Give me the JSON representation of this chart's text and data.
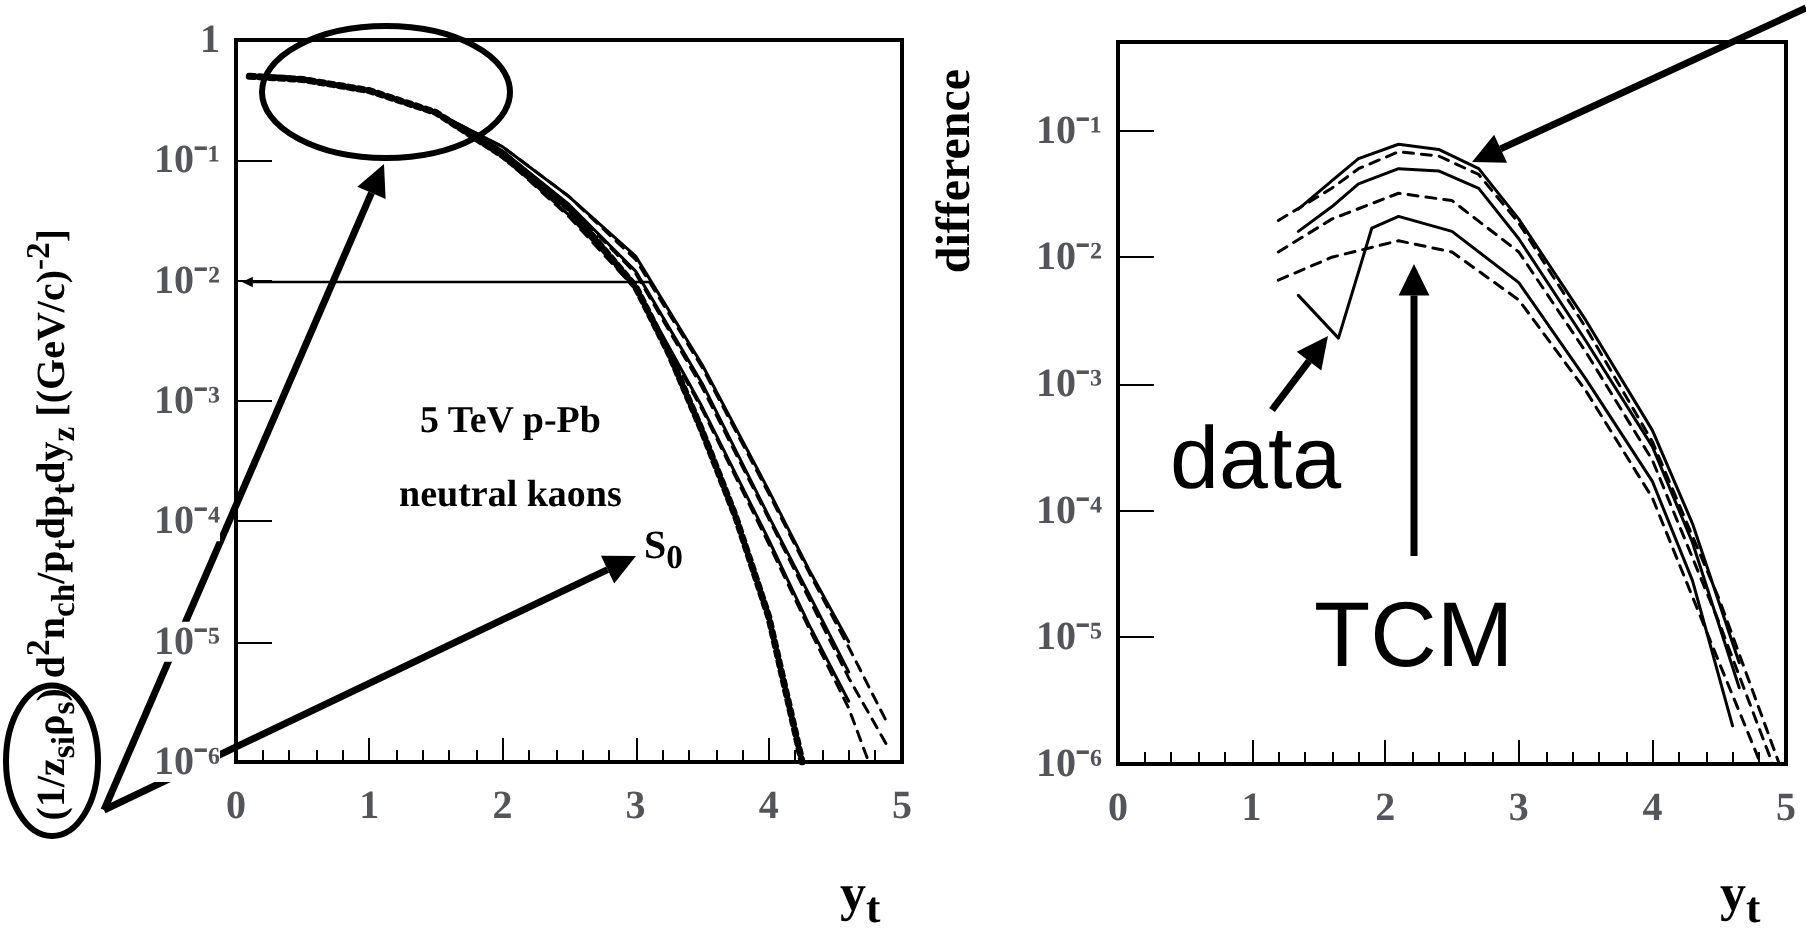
{
  "chart_data": [
    {
      "type": "line",
      "xlabel": "y$_{t}$",
      "ylabel": "(1/z$_{si}$ρ$_{s}$) d$^{2}$n$_{ch}$/p$_{t}$dp$_{t}$dy$_{z}$  [(GeV/c)$^{-2}$]",
      "log": "y",
      "grid": false,
      "marker": "none",
      "xlim": [
        0,
        5
      ],
      "xticks": [
        0,
        1,
        2,
        3,
        4,
        5
      ],
      "ylim": [
        1e-06,
        1
      ],
      "yticks": [
        1,
        {
          "value": 0.1,
          "label": "10⁻¹"
        },
        {
          "value": 0.01,
          "label": "10⁻²"
        },
        {
          "value": 0.001,
          "label": "10⁻³"
        },
        {
          "value": 0.0001,
          "label": "10⁻⁴"
        },
        {
          "value": 1e-05,
          "label": "10⁻⁵"
        },
        {
          "value": 1e-06,
          "label": "10⁻⁶"
        }
      ],
      "annotations": [
        "5 TeV p-Pb",
        "neutral kaons",
        "S$_{0}$"
      ],
      "series": [
        {
          "color": "#000000",
          "line_style": "dotted",
          "x": [
            0.1,
            0.5,
            1,
            1.5,
            2,
            2.5,
            3,
            3.25,
            3.5,
            3.75,
            4,
            4.25
          ],
          "values": [
            0.5,
            0.47,
            0.38,
            0.25,
            0.11,
            0.04,
            0.0089,
            0.0025,
            0.00056,
            0.00011,
            1.6e-05,
            1e-06
          ]
        },
        {
          "color": "#000000",
          "line_style": "solid",
          "x": [
            0.3,
            0.5,
            1,
            1.5,
            2,
            2.5,
            3,
            3.5,
            4,
            4.3,
            4.6
          ],
          "values": [
            0.5,
            0.48,
            0.38,
            0.25,
            0.13,
            0.05,
            0.016,
            0.002,
            0.00018,
            4e-05,
            1e-05
          ]
        },
        {
          "color": "#000000",
          "line_style": "solid",
          "x": [
            0.3,
            0.5,
            1,
            1.5,
            2,
            2.5,
            3,
            3.5,
            4,
            4.3,
            4.6
          ],
          "values": [
            0.5,
            0.48,
            0.38,
            0.25,
            0.12,
            0.043,
            0.012,
            0.0014,
            0.00011,
            2.5e-05,
            5.6e-06
          ]
        },
        {
          "color": "#000000",
          "line_style": "solid",
          "x": [
            0.3,
            0.5,
            1,
            1.5,
            2,
            2.5,
            3,
            3.5,
            4,
            4.3,
            4.6
          ],
          "values": [
            0.5,
            0.48,
            0.38,
            0.25,
            0.11,
            0.035,
            0.0089,
            0.00089,
            7e-05,
            1.4e-05,
            3.2e-06
          ]
        },
        {
          "color": "#000000",
          "line_style": "dashed",
          "x": [
            0.1,
            0.5,
            1,
            1.5,
            2,
            2.5,
            3,
            3.5,
            4,
            4.3,
            4.6,
            4.9
          ],
          "values": [
            0.5,
            0.48,
            0.38,
            0.25,
            0.13,
            0.05,
            0.015,
            0.0019,
            0.00017,
            3.8e-05,
            9e-06,
            2e-06
          ]
        },
        {
          "color": "#000000",
          "line_style": "dashed",
          "x": [
            0.1,
            0.5,
            1,
            1.5,
            2,
            2.5,
            3,
            3.5,
            4,
            4.3,
            4.6,
            4.9
          ],
          "values": [
            0.5,
            0.48,
            0.38,
            0.25,
            0.12,
            0.042,
            0.0115,
            0.0013,
            0.000105,
            2.3e-05,
            5e-06,
            1.3e-06
          ]
        },
        {
          "color": "#000000",
          "line_style": "dashed",
          "x": [
            0.1,
            0.5,
            1,
            1.5,
            2,
            2.5,
            3,
            3.5,
            4,
            4.3,
            4.6,
            4.75
          ],
          "values": [
            0.5,
            0.47,
            0.38,
            0.25,
            0.108,
            0.034,
            0.0085,
            0.00085,
            6.5e-05,
            1.3e-05,
            2.8e-06,
            1e-06
          ]
        }
      ]
    },
    {
      "type": "line",
      "xlabel": "y$_{t}$",
      "ylabel": "difference",
      "log": "y",
      "grid": false,
      "marker": "none",
      "xlim": [
        0,
        5
      ],
      "xticks": [
        0,
        1,
        2,
        3,
        4,
        5
      ],
      "ylim": [
        1e-06,
        0.5
      ],
      "yticks": [
        {
          "value": 0.1,
          "label": "10⁻¹"
        },
        {
          "value": 0.01,
          "label": "10⁻²"
        },
        {
          "value": 0.001,
          "label": "10⁻³"
        },
        {
          "value": 0.0001,
          "label": "10⁻⁴"
        },
        {
          "value": 1e-05,
          "label": "10⁻⁵"
        },
        {
          "value": 1e-06,
          "label": "10⁻⁶"
        }
      ],
      "annotations": [
        "data",
        "TCM"
      ],
      "series": [
        {
          "color": "#000000",
          "line_style": "solid",
          "x": [
            1.35,
            1.6,
            1.8,
            2.1,
            2.4,
            2.7,
            3,
            3.5,
            4,
            4.3,
            4.65
          ],
          "values": [
            0.024,
            0.04,
            0.06,
            0.078,
            0.071,
            0.05,
            0.02,
            0.0032,
            0.00043,
            7.9e-05,
            6.3e-06
          ]
        },
        {
          "color": "#000000",
          "line_style": "solid",
          "x": [
            1.35,
            1.6,
            1.8,
            2.1,
            2.4,
            2.7,
            3,
            3.5,
            4,
            4.3,
            4.65
          ],
          "values": [
            0.016,
            0.025,
            0.038,
            0.05,
            0.048,
            0.035,
            0.014,
            0.0022,
            0.00032,
            5.6e-05,
            4e-06
          ]
        },
        {
          "color": "#000000",
          "line_style": "solid",
          "x": [
            1.35,
            1.65,
            1.9,
            2.1,
            2.5,
            3,
            3.5,
            4,
            4.3,
            4.6
          ],
          "values": [
            0.005,
            0.0023,
            0.017,
            0.021,
            0.016,
            0.0063,
            0.0011,
            0.00017,
            2.8e-05,
            2e-06
          ]
        },
        {
          "color": "#000000",
          "line_style": "dashed",
          "x": [
            1.2,
            1.6,
            1.8,
            2.1,
            2.4,
            2.7,
            3,
            3.5,
            4,
            4.5,
            4.95
          ],
          "values": [
            0.0195,
            0.035,
            0.05,
            0.068,
            0.063,
            0.045,
            0.0186,
            0.0028,
            0.00035,
            2e-05,
            1e-06
          ]
        },
        {
          "color": "#000000",
          "line_style": "dashed",
          "x": [
            1.2,
            1.6,
            2.1,
            2.5,
            3,
            3.5,
            4,
            4.5,
            4.9
          ],
          "values": [
            0.011,
            0.02,
            0.032,
            0.028,
            0.011,
            0.0018,
            0.00025,
            1.3e-05,
            1e-06
          ]
        },
        {
          "color": "#000000",
          "line_style": "dashed",
          "x": [
            1.2,
            1.6,
            2.1,
            2.5,
            3,
            3.5,
            4,
            4.5,
            4.8
          ],
          "values": [
            0.0066,
            0.01,
            0.0135,
            0.011,
            0.0046,
            0.00089,
            0.000126,
            6.3e-06,
            1.07e-06
          ]
        }
      ]
    }
  ]
}
